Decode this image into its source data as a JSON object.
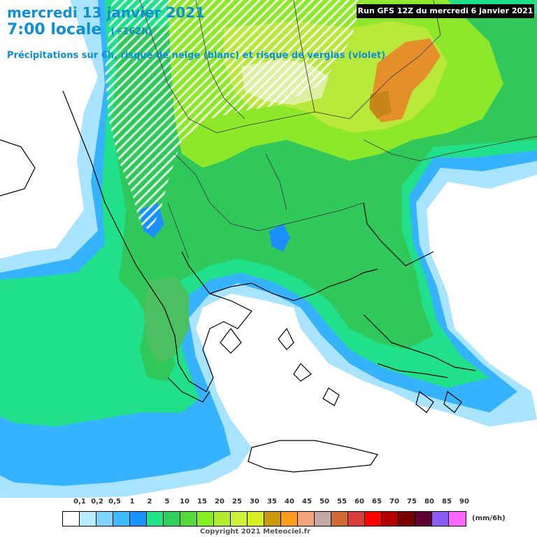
{
  "header": {
    "date": "mercredi 13 janvier 2021",
    "time": "7:00 locale",
    "lead": "(+162h)",
    "subtitle": "Précipitations sur 6h, risque de neige (blanc) et risque de verglas (violet)",
    "run": "Run GFS 12Z du mercredi 6 janvier 2021"
  },
  "legend": {
    "labels": [
      "0,1",
      "0,2",
      "0,5",
      "1",
      "2",
      "5",
      "10",
      "15",
      "20",
      "25",
      "30",
      "35",
      "40",
      "45",
      "50",
      "55",
      "60",
      "65",
      "70",
      "75",
      "80",
      "85",
      "90"
    ],
    "colors": [
      "#ffffff",
      "#b9ecff",
      "#7fd7ff",
      "#3cbcff",
      "#1a93ff",
      "#1fe58a",
      "#2ecf5c",
      "#56d93b",
      "#86ef1f",
      "#b3ec2c",
      "#ccf23a",
      "#d6ef1f",
      "#cc9a06",
      "#ff9b1a",
      "#f2a47a",
      "#c5a6a1",
      "#d26a36",
      "#d63c3c",
      "#ff0000",
      "#b40000",
      "#7a0000",
      "#5e0033",
      "#8b5cf6",
      "#ff66ff"
    ],
    "unit": "(mm/6h)"
  },
  "footer": {
    "copyright": "Copyright 2021 Meteociel.fr"
  }
}
